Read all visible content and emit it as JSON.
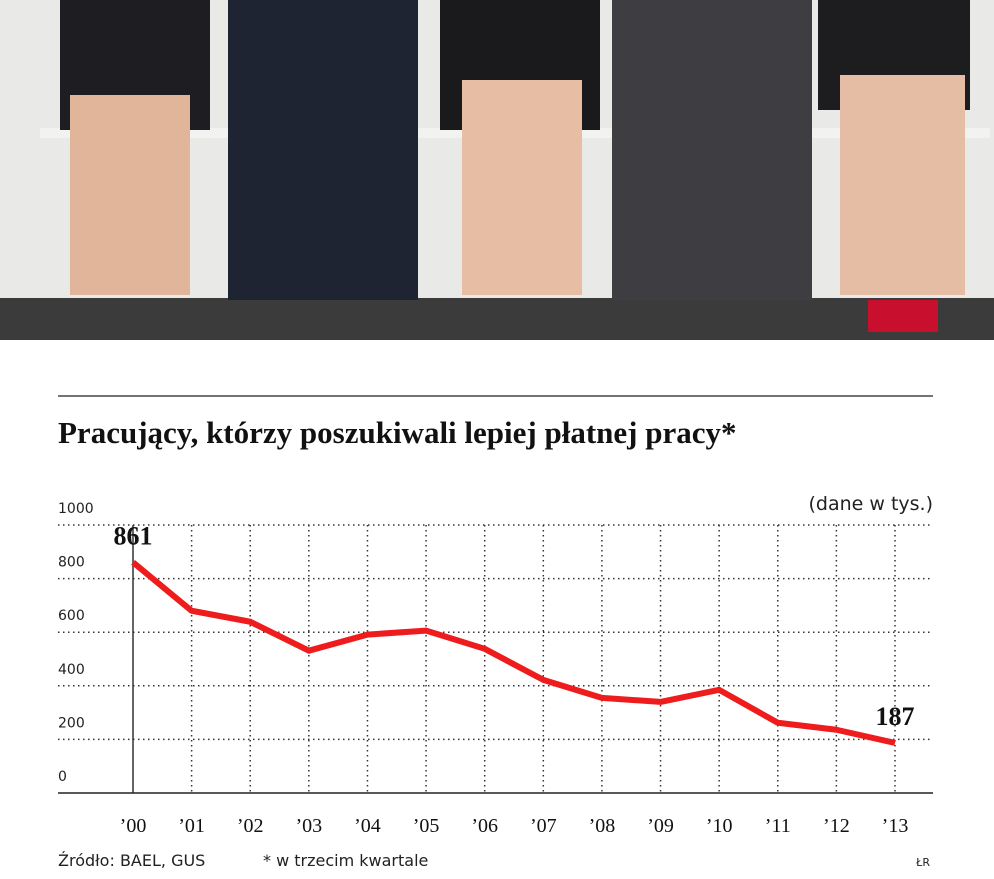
{
  "chart_data": {
    "type": "line",
    "title": "Pracujący, którzy poszukiwali lepiej płatnej pracy*",
    "unit_note": "(dane w tys.)",
    "source": "Źródło: BAEL, GUS",
    "footnote": "* w trzecim kwartale",
    "credit": "ŁR",
    "categories": [
      "’00",
      "’01",
      "’02",
      "’03",
      "’04",
      "’05",
      "’06",
      "’07",
      "’08",
      "’09",
      "’10",
      "’11",
      "’12",
      "’13"
    ],
    "values": [
      861,
      680,
      639,
      531,
      591,
      606,
      538,
      422,
      355,
      340,
      385,
      262,
      236,
      187
    ],
    "labeled_points": [
      0,
      13
    ],
    "color": "#ee1c1c",
    "ylim": [
      0,
      1000
    ],
    "yticks": [
      0,
      200,
      400,
      600,
      800,
      1000
    ],
    "grid": true
  }
}
